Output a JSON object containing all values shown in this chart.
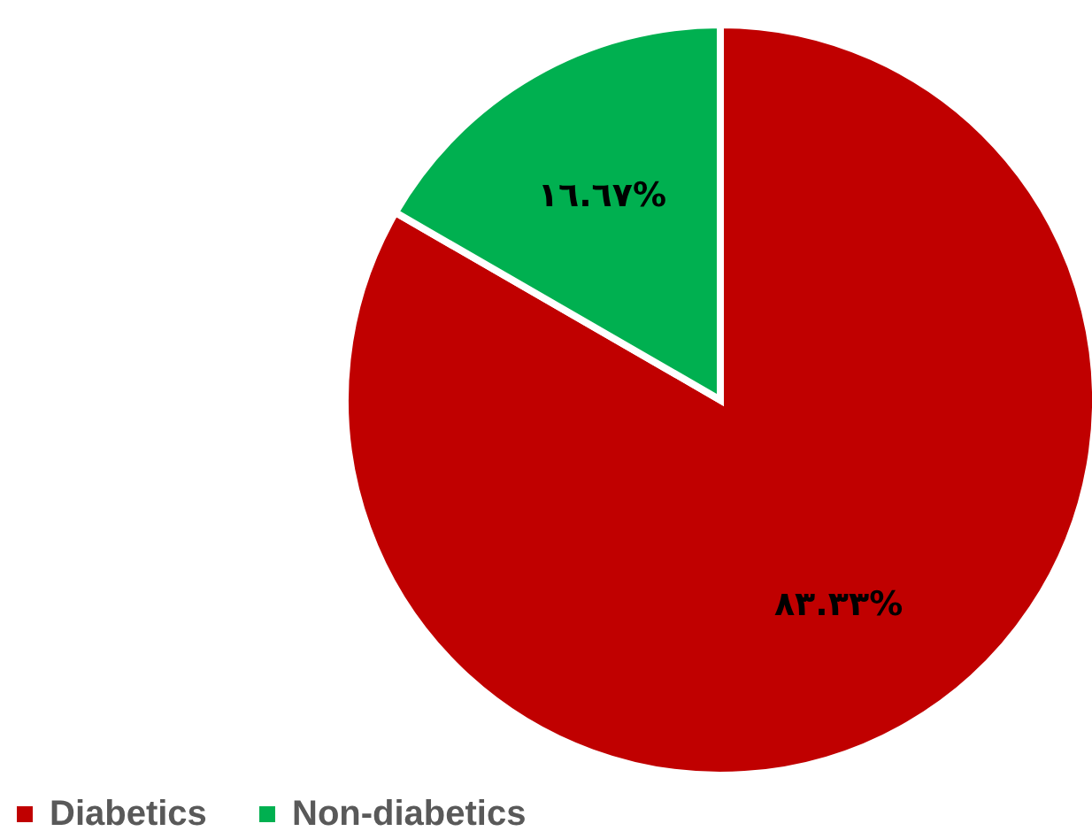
{
  "chart_data": {
    "type": "pie",
    "categories": [
      "Diabetics",
      "Non-diabetics"
    ],
    "values": [
      83.33,
      16.67
    ],
    "colors": [
      "#c00000",
      "#00b050"
    ],
    "value_labels": [
      "٨٣.٣٣%",
      "١٦.٦٧%"
    ],
    "legend": "bottom left"
  }
}
